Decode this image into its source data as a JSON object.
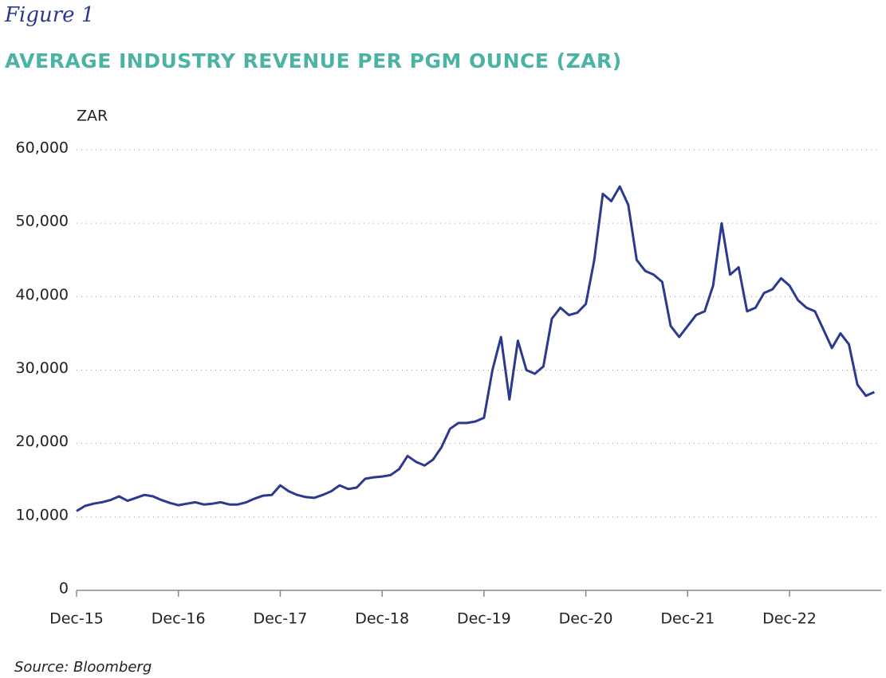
{
  "figure_label": "Figure 1",
  "chart_data": {
    "type": "line",
    "title": "AVERAGE INDUSTRY REVENUE PER PGM OUNCE (ZAR)",
    "y_label": "ZAR",
    "source": "Source: Bloomberg",
    "x": [
      "Dec-15",
      null,
      null,
      null,
      null,
      null,
      null,
      null,
      null,
      null,
      null,
      null,
      "Dec-16",
      null,
      null,
      null,
      null,
      null,
      null,
      null,
      null,
      null,
      null,
      null,
      "Dec-17",
      null,
      null,
      null,
      null,
      null,
      null,
      null,
      null,
      null,
      null,
      null,
      "Dec-18",
      null,
      null,
      null,
      null,
      null,
      null,
      null,
      null,
      null,
      null,
      null,
      "Dec-19",
      null,
      null,
      null,
      null,
      null,
      null,
      null,
      null,
      null,
      null,
      null,
      "Dec-20",
      null,
      null,
      null,
      null,
      null,
      null,
      null,
      null,
      null,
      null,
      null,
      "Dec-21",
      null,
      null,
      null,
      null,
      null,
      null,
      null,
      null,
      null,
      null,
      null,
      "Dec-22",
      null,
      null,
      null,
      null,
      null,
      null,
      null,
      null,
      null,
      null
    ],
    "series": [
      {
        "name": "Average industry revenue per PGM ounce",
        "color": "#2b3a8f",
        "values": [
          10800,
          11500,
          11800,
          12000,
          12300,
          12800,
          12200,
          12600,
          13000,
          12800,
          12300,
          11900,
          11600,
          11800,
          12000,
          11700,
          11800,
          12000,
          11700,
          11700,
          12000,
          12500,
          12900,
          13000,
          14300,
          13500,
          13000,
          12700,
          12600,
          13000,
          13500,
          14300,
          13800,
          14000,
          15200,
          15400,
          15500,
          15700,
          16500,
          18300,
          17500,
          17000,
          17800,
          19500,
          22000,
          22800,
          22800,
          23000,
          23500,
          30000,
          34500,
          26000,
          34000,
          30000,
          29500,
          30500,
          37000,
          38500,
          37500,
          37800,
          39000,
          45000,
          54000,
          53000,
          55000,
          52500,
          45000,
          43500,
          43000,
          42000,
          36000,
          34500,
          36000,
          37500,
          38000,
          41500,
          50000,
          43000,
          44000,
          38000,
          38500,
          40500,
          41000,
          42500,
          41500,
          39500,
          38500,
          38000,
          35500,
          33000,
          35000,
          33500,
          28000,
          26500,
          27000
        ]
      }
    ],
    "ylim": [
      0,
      60000
    ],
    "yticks": [
      0,
      {
        "value": 10000,
        "label": "10,000"
      },
      {
        "value": 20000,
        "label": "20,000"
      },
      {
        "value": 30000,
        "label": "30,000"
      },
      {
        "value": 40000,
        "label": "40,000"
      },
      {
        "value": 50000,
        "label": "50,000"
      },
      {
        "value": 60000,
        "label": "60,000"
      }
    ],
    "grid": true
  }
}
